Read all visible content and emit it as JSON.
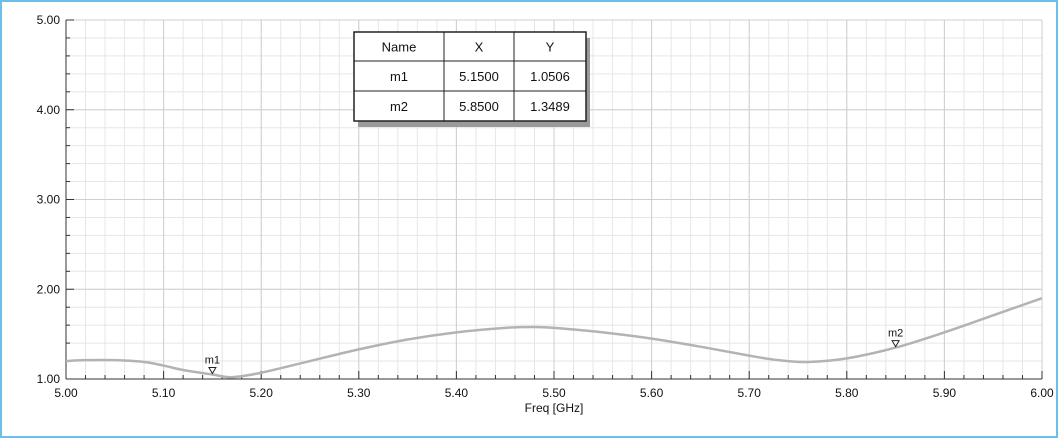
{
  "chart_data": {
    "type": "line",
    "title": "",
    "xlabel": "Freq [GHz]",
    "ylabel": "",
    "xlim": [
      5.0,
      6.0
    ],
    "ylim": [
      1.0,
      5.0
    ],
    "x_ticks": [
      "5.00",
      "5.10",
      "5.20",
      "5.30",
      "5.40",
      "5.50",
      "5.60",
      "5.70",
      "5.80",
      "5.90",
      "6.00"
    ],
    "y_ticks": [
      "1.00",
      "2.00",
      "3.00",
      "4.00",
      "5.00"
    ],
    "grid": true,
    "legend": "none",
    "series_color": "#b3b3b3",
    "series": [
      {
        "x": [
          5.0,
          5.02,
          5.05,
          5.08,
          5.1,
          5.12,
          5.15,
          5.17,
          5.2,
          5.25,
          5.3,
          5.35,
          5.4,
          5.45,
          5.48,
          5.5,
          5.55,
          5.6,
          5.65,
          5.7,
          5.73,
          5.76,
          5.8,
          5.85,
          5.9,
          5.95,
          6.0
        ],
        "y": [
          1.2,
          1.21,
          1.21,
          1.19,
          1.15,
          1.1,
          1.05,
          1.02,
          1.07,
          1.2,
          1.33,
          1.44,
          1.52,
          1.57,
          1.58,
          1.57,
          1.52,
          1.45,
          1.36,
          1.26,
          1.21,
          1.19,
          1.23,
          1.35,
          1.52,
          1.71,
          1.9
        ]
      }
    ],
    "markers": [
      {
        "name": "m1",
        "x": 5.15,
        "y": 1.05
      },
      {
        "name": "m2",
        "x": 5.85,
        "y": 1.35
      }
    ],
    "marker_table": {
      "headers": [
        "Name",
        "X",
        "Y"
      ],
      "rows": [
        [
          "m1",
          "5.1500",
          "1.0506"
        ],
        [
          "m2",
          "5.8500",
          "1.3489"
        ]
      ]
    }
  }
}
